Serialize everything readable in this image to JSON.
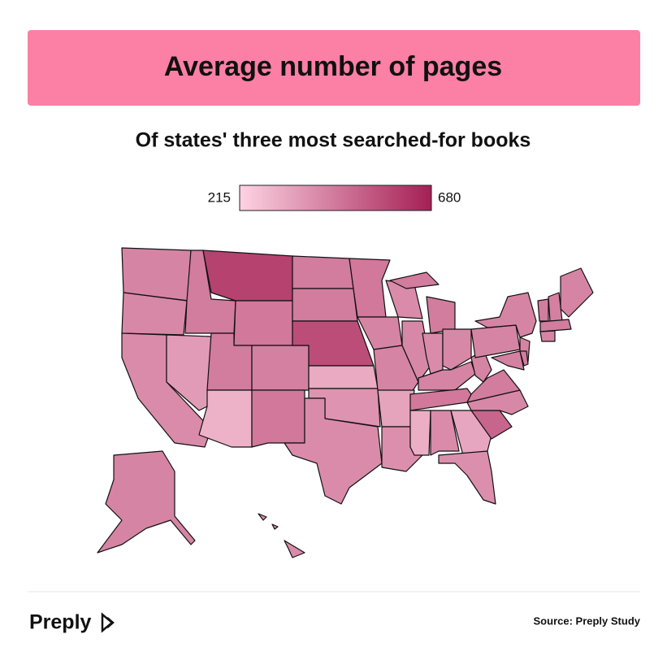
{
  "chart_data": {
    "type": "choropleth",
    "title": "Average number of pages",
    "subtitle": "Of states' three most searched-for books",
    "legend": {
      "min": 215,
      "max": 680,
      "color_low": "#fdd3e2",
      "color_high": "#a51f55"
    },
    "values": [
      420,
      410,
      400,
      360,
      440,
      590,
      450,
      440,
      300,
      430,
      450,
      440,
      440,
      560,
      320,
      380,
      400,
      450,
      420,
      420,
      340,
      390,
      400,
      410,
      440,
      400,
      410,
      420,
      450,
      310,
      400,
      330,
      390,
      500,
      410,
      440,
      420,
      420,
      420,
      420,
      430,
      440,
      440,
      420,
      420,
      430,
      440,
      420,
      400
    ],
    "logo": "Preply",
    "source": "Source: Preply Study"
  }
}
